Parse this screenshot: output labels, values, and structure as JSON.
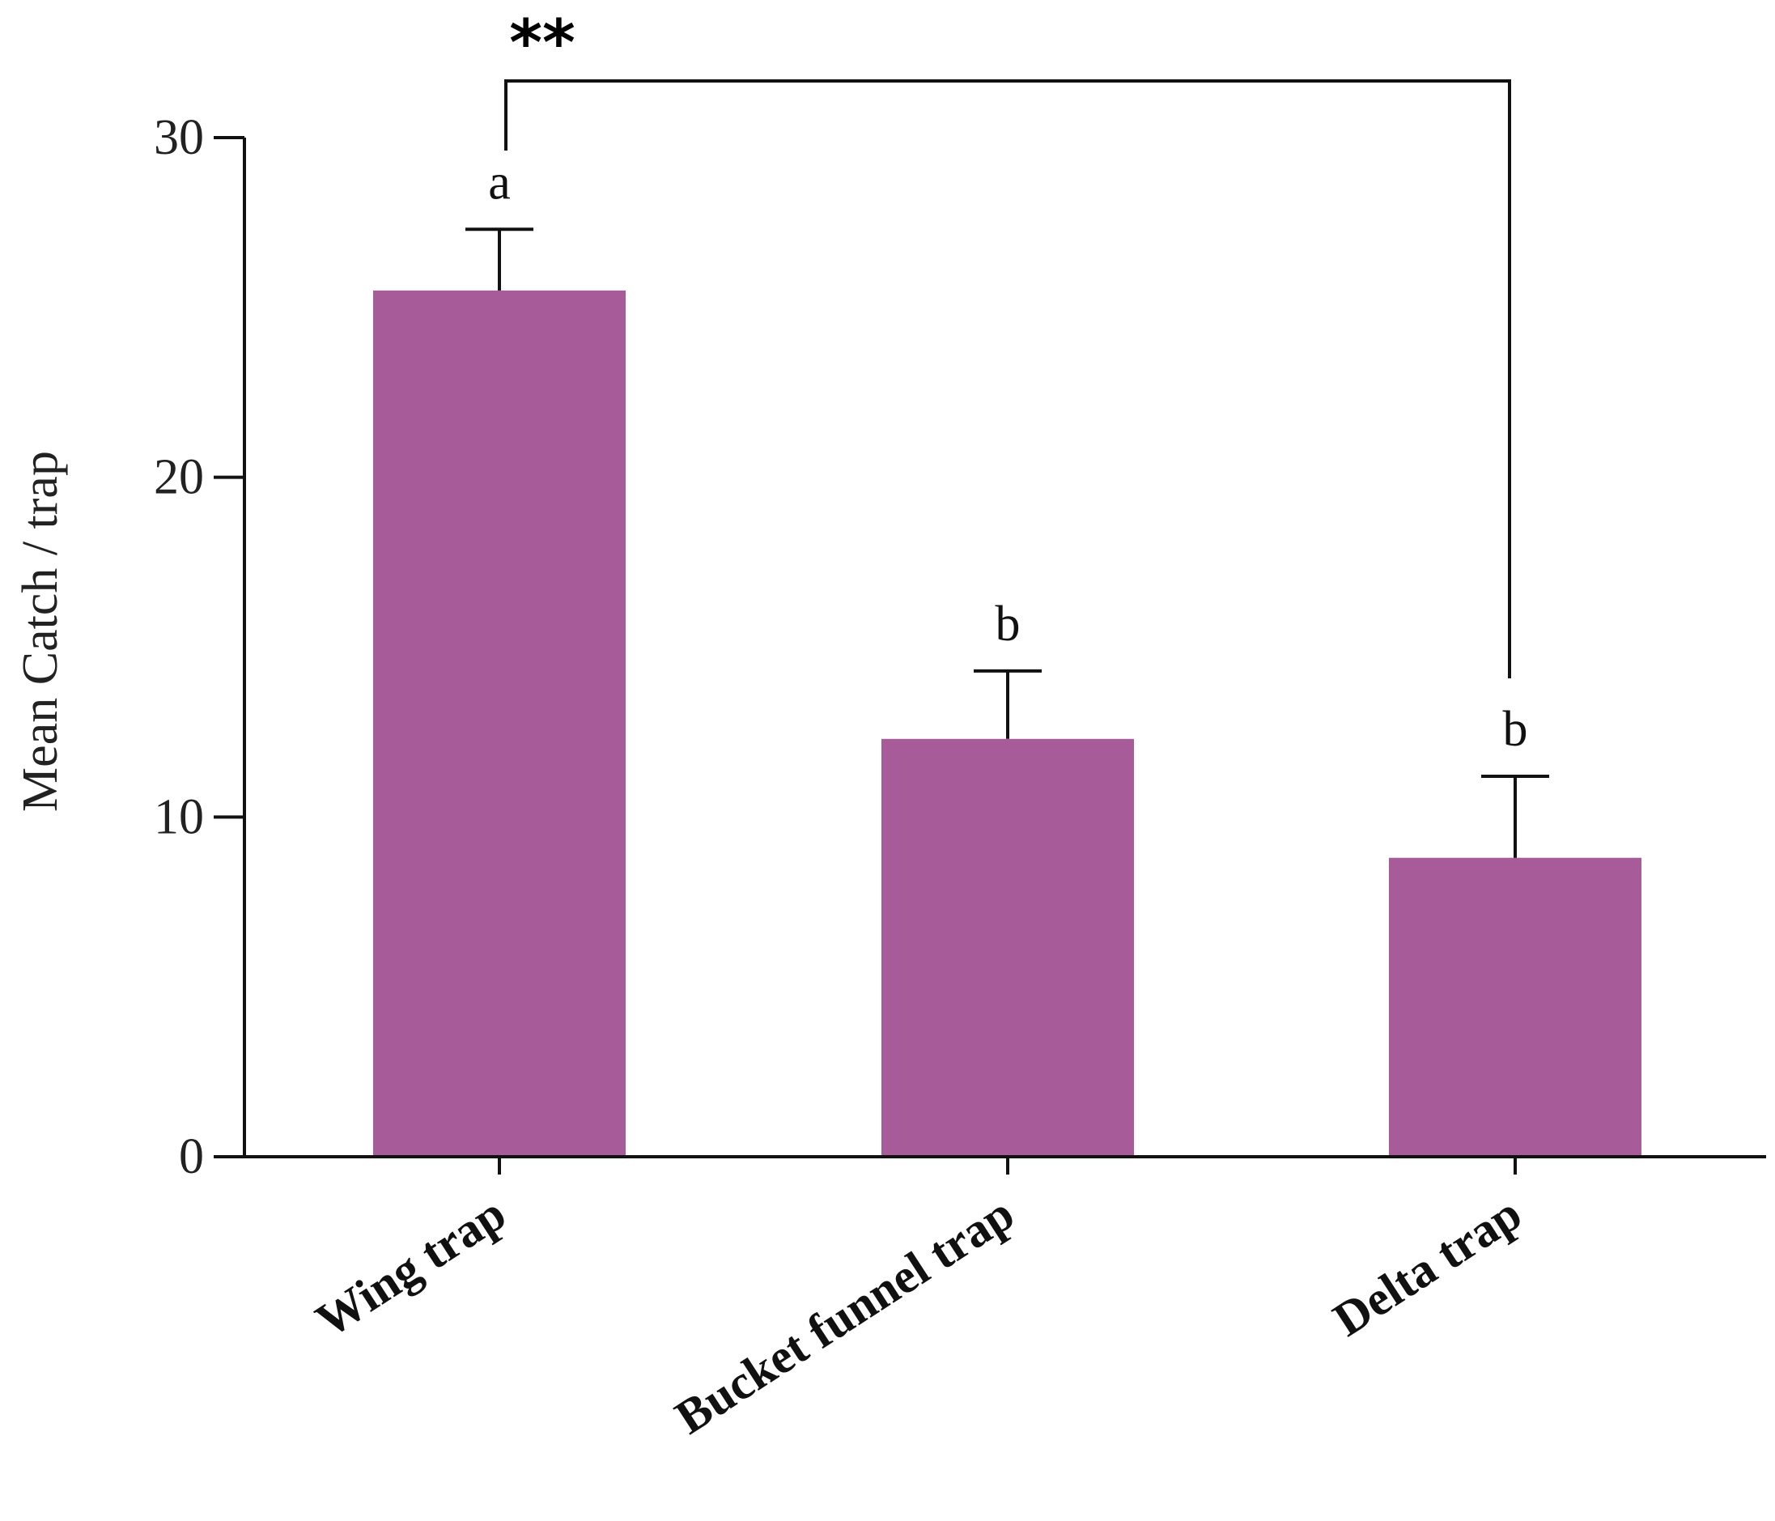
{
  "chart_data": {
    "type": "bar",
    "categories": [
      "Wing trap",
      "Bucket funnel trap",
      "Delta trap"
    ],
    "values": [
      25.5,
      12.3,
      8.8
    ],
    "errors": [
      1.8,
      2.0,
      2.4
    ],
    "letters": [
      "a",
      "b",
      "b"
    ],
    "ylabel": "Mean Catch / trap",
    "xlabel": "",
    "ylim": [
      0,
      30
    ],
    "yticks": [
      "0",
      "10",
      "20",
      "30"
    ],
    "significance": {
      "label": "**",
      "between": [
        "Wing trap",
        "Delta trap"
      ]
    },
    "bar_color": "#A85B99",
    "grid": false,
    "legend": "none"
  }
}
